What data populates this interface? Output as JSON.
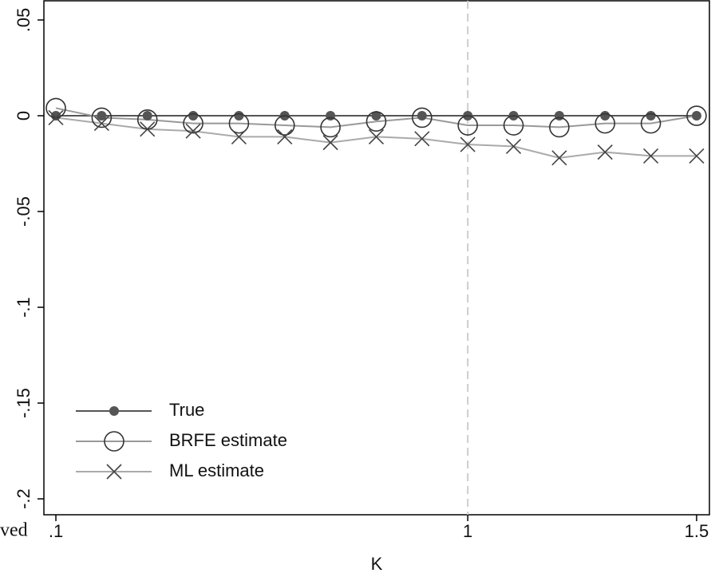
{
  "chart_data": {
    "type": "line",
    "x_label": "K",
    "annotation": "ved",
    "x": [
      0.1,
      0.2,
      0.3,
      0.4,
      0.5,
      0.6,
      0.7,
      0.8,
      0.9,
      1,
      1.1,
      1.2,
      1.3,
      1.4,
      1.5
    ],
    "series": [
      {
        "name": "True",
        "color": "#555555",
        "marker": "dot",
        "values": [
          0,
          0,
          0,
          0,
          0,
          0,
          0,
          0,
          0,
          0,
          0,
          0,
          0,
          0,
          0
        ]
      },
      {
        "name": "BRFE estimate",
        "color": "#999999",
        "marker": "circle",
        "values": [
          0.004,
          -0.001,
          -0.002,
          -0.004,
          -0.004,
          -0.005,
          -0.006,
          -0.003,
          -0.001,
          -0.005,
          -0.005,
          -0.006,
          -0.004,
          -0.004,
          0
        ]
      },
      {
        "name": "ML estimate",
        "color": "#aaaaaa",
        "marker": "x",
        "values": [
          -0.001,
          -0.004,
          -0.007,
          -0.008,
          -0.011,
          -0.011,
          -0.014,
          -0.011,
          -0.012,
          -0.015,
          -0.016,
          -0.022,
          -0.019,
          -0.021,
          -0.021
        ]
      }
    ],
    "xlim": [
      0.0738,
      1.528
    ],
    "ylim": [
      -0.2083,
      0.06
    ],
    "xticks": [
      {
        "value": 0.1,
        "label": ".1"
      },
      1,
      1.5
    ],
    "yticks": [
      {
        "value": 0.05,
        "label": ".05"
      },
      0,
      {
        "value": -0.05,
        "label": "-.05"
      },
      {
        "value": -0.1,
        "label": "-.1"
      },
      {
        "value": -0.15,
        "label": "-.15"
      },
      {
        "value": -0.2,
        "label": "-.2"
      }
    ],
    "reference_x": 1,
    "legend": "lower left",
    "grid": false
  }
}
